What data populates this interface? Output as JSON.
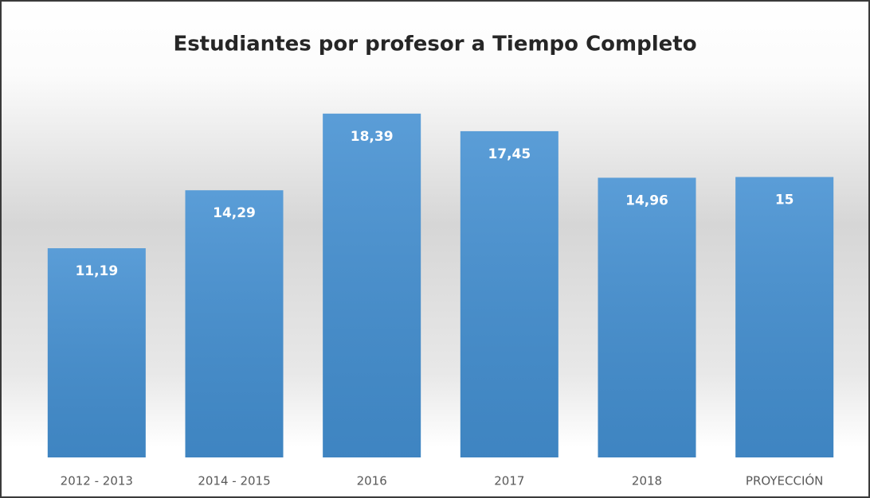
{
  "chart_data": {
    "type": "bar",
    "title": "Estudiantes por profesor a Tiempo Completo",
    "categories": [
      "2012 - 2013",
      "2014 - 2015",
      "2016",
      "2017",
      "2018",
      "PROYECCIÓN"
    ],
    "values": [
      11.19,
      14.29,
      18.39,
      17.45,
      14.96,
      15
    ],
    "value_labels": [
      "11,19",
      "14,29",
      "18,39",
      "17,45",
      "14,96",
      "15"
    ],
    "color": "#4490d2",
    "ylim": [
      0,
      20
    ]
  }
}
